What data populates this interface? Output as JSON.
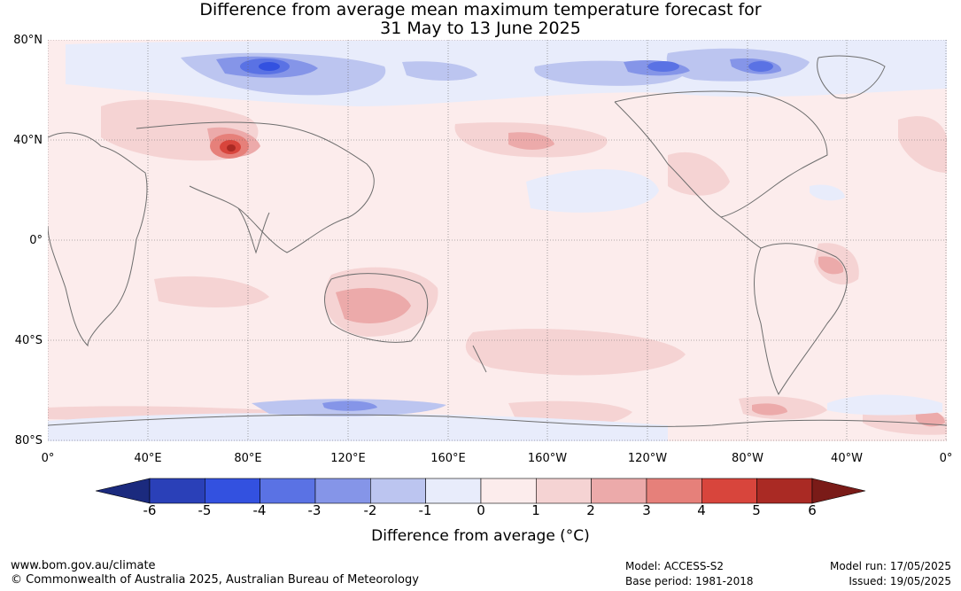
{
  "title_line1": "Difference from average mean maximum temperature forecast for",
  "title_line2": "31 May to 13 June 2025",
  "map": {
    "lat_labels": [
      "80°N",
      "40°N",
      "0°",
      "40°S",
      "80°S"
    ],
    "lon_labels": [
      "0°",
      "40°E",
      "80°E",
      "120°E",
      "160°E",
      "160°W",
      "120°W",
      "80°W",
      "40°W",
      "0°"
    ],
    "lat_range": [
      -80,
      80
    ],
    "lon_range": [
      0,
      360
    ],
    "grid": "dotted",
    "background_anomaly_range": [
      0,
      1
    ]
  },
  "colorbar": {
    "ticks": [
      "-6",
      "-5",
      "-4",
      "-3",
      "-2",
      "-1",
      "0",
      "1",
      "2",
      "3",
      "4",
      "5",
      "6"
    ],
    "colors": [
      "#1b2a7e",
      "#2a40b8",
      "#3351e0",
      "#5a72e4",
      "#8595e8",
      "#bcc5f0",
      "#e8ecfb",
      "#fcecec",
      "#f5d3d3",
      "#ecaaaa",
      "#e6807a",
      "#d8453c",
      "#aa2a24",
      "#7a1b18"
    ],
    "label": "Difference from average (°C)"
  },
  "footer": {
    "site": "www.bom.gov.au/climate",
    "copyright": "© Commonwealth of Australia 2025, Australian Bureau of Meteorology",
    "model": "Model: ACCESS-S2",
    "base_period": "Base period: 1981-2018",
    "model_run": "Model run: 17/05/2025",
    "issued": "Issued: 19/05/2025"
  }
}
